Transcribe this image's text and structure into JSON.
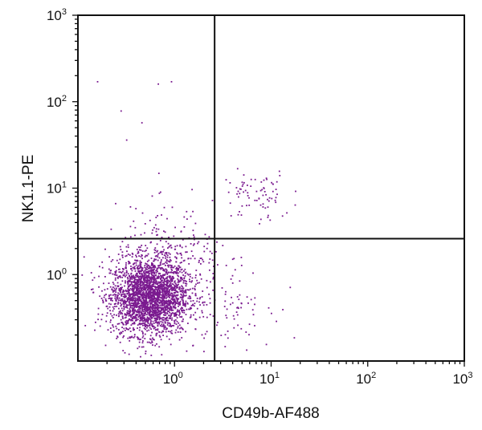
{
  "chart_data": {
    "type": "scatter",
    "title": "",
    "xlabel": "CD49b-AF488",
    "ylabel": "NK1.1-PE",
    "xscale": "log",
    "yscale": "log",
    "xlim": [
      0.1,
      1000
    ],
    "ylim": [
      0.1,
      1000
    ],
    "grid": false,
    "point_color": "#7a1a8f",
    "x_ticks": [
      {
        "base": "10",
        "exp": "0",
        "value": 1
      },
      {
        "base": "10",
        "exp": "1",
        "value": 10
      },
      {
        "base": "10",
        "exp": "2",
        "value": 100
      },
      {
        "base": "10",
        "exp": "3",
        "value": 1000
      }
    ],
    "y_ticks": [
      {
        "base": "10",
        "exp": "0",
        "value": 1
      },
      {
        "base": "10",
        "exp": "1",
        "value": 10
      },
      {
        "base": "10",
        "exp": "2",
        "value": 100
      },
      {
        "base": "10",
        "exp": "3",
        "value": 1000
      }
    ],
    "quadrant_gates": {
      "x": 2.6,
      "y": 2.6
    },
    "populations": [
      {
        "center_x": 0.55,
        "center_y": 0.55,
        "spread_log_x": 0.2,
        "spread_log_y": 0.22,
        "count": 2600
      },
      {
        "center_x": 0.9,
        "center_y": 1.3,
        "spread_log_x": 0.28,
        "spread_log_y": 0.32,
        "count": 300
      },
      {
        "center_x": 7.0,
        "center_y": 8.0,
        "spread_log_x": 0.18,
        "spread_log_y": 0.15,
        "count": 80
      },
      {
        "center_x": 4.0,
        "center_y": 0.5,
        "spread_log_x": 0.2,
        "spread_log_y": 0.25,
        "count": 70
      }
    ],
    "outliers": [
      {
        "x": 0.16,
        "y": 170
      },
      {
        "x": 0.68,
        "y": 160
      },
      {
        "x": 0.93,
        "y": 170
      },
      {
        "x": 0.28,
        "y": 78
      },
      {
        "x": 0.46,
        "y": 57
      },
      {
        "x": 0.32,
        "y": 36
      }
    ]
  }
}
